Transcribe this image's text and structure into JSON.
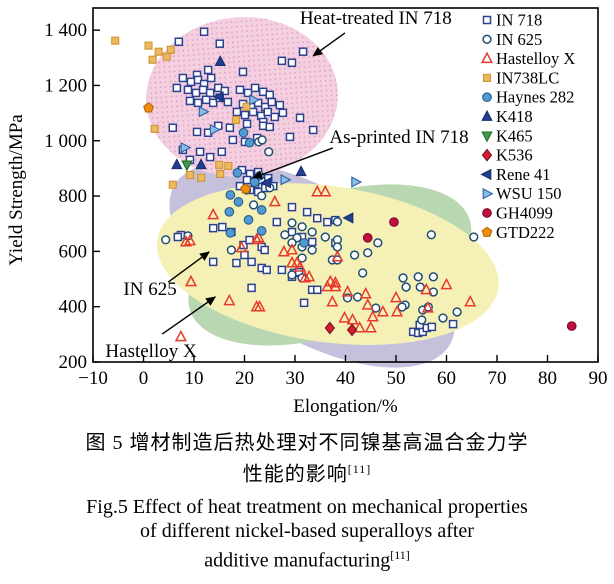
{
  "captions": {
    "cn1": "图 5  增材制造后热处理对不同镍基高温合金力学",
    "cn2": "性能的影响",
    "ref": "[11]",
    "en1": "Fig.5 Effect of heat treatment on mechanical properties",
    "en2": "of different nickel-based superalloys after",
    "en3": "additive manufacturing"
  },
  "chart_data": {
    "type": "scatter",
    "xlabel": "Elongation/%",
    "ylabel": "Yield Strength/MPa",
    "xlim": [
      -10,
      90
    ],
    "ylim": [
      200,
      1480
    ],
    "xticks": [
      -10,
      0,
      10,
      20,
      30,
      40,
      50,
      60,
      70,
      80,
      90
    ],
    "xtick_labels": [
      "−10",
      "0",
      "10",
      "20",
      "30",
      "40",
      "50",
      "60",
      "70",
      "80",
      "90"
    ],
    "yticks": [
      200,
      400,
      600,
      800,
      1000,
      1200,
      1400
    ],
    "ytick_labels": [
      "200",
      "400",
      "600",
      "800",
      "1 000",
      "1 200",
      "1 400"
    ],
    "grid": false,
    "legend_position": "top-right-inside",
    "regions": [
      {
        "name": "as-printed-region",
        "color": "#c5c1dc",
        "cx": 33.4,
        "cy": 551,
        "rx": 31.5,
        "ry": 271,
        "rot": 30,
        "pattern": "solid"
      },
      {
        "name": "hastelloy-x-region",
        "color": "#b9d8b1",
        "cx": 36.9,
        "cy": 551,
        "rx": 29.1,
        "ry": 253,
        "rot": -18,
        "pattern": "solid"
      },
      {
        "name": "in625-region",
        "color": "#f5f1b6",
        "cx": 36.5,
        "cy": 554,
        "rx": 34.1,
        "ry": 282,
        "rot": 8,
        "pattern": "solid"
      },
      {
        "name": "heat-treated-in718-region",
        "color": "#f4cfe0",
        "dot_color": "#dd9fc6",
        "cx": 19.5,
        "cy": 1158,
        "rx": 19.0,
        "ry": 289,
        "rot": -4,
        "pattern": "dots"
      }
    ],
    "annotations": [
      {
        "text": "Heat-treated IN 718",
        "tx": 46.0,
        "ty": 1444,
        "arrow": [
          39.9,
          1390,
          33.6,
          1307
        ]
      },
      {
        "text": "As-printed IN 718",
        "tx": 50.6,
        "ty": 1014,
        "arrow": [
          37.5,
          974,
          21.7,
          866
        ]
      },
      {
        "text": "IN 625",
        "tx": 1.3,
        "ty": 464,
        "arrow": [
          4.9,
          489,
          13.0,
          598
        ]
      },
      {
        "text": "Hastelloy X",
        "tx": 1.5,
        "ty": 240,
        "arrow": [
          3.7,
          301,
          14.2,
          435
        ]
      }
    ],
    "series": [
      {
        "name": "IN 718",
        "marker": "open-square",
        "color": "#2b418f",
        "points": [
          [
            12.0,
            1394
          ],
          [
            7.0,
            1358
          ],
          [
            15.1,
            1351
          ],
          [
            31.6,
            1322
          ],
          [
            27.4,
            1289
          ],
          [
            29.4,
            1282
          ],
          [
            19.7,
            1249
          ],
          [
            10.6,
            1238
          ],
          [
            12.8,
            1256
          ],
          [
            7.8,
            1227
          ],
          [
            9.4,
            1213
          ],
          [
            10.8,
            1220
          ],
          [
            12.0,
            1205
          ],
          [
            13.4,
            1227
          ],
          [
            8.8,
            1184
          ],
          [
            10.4,
            1173
          ],
          [
            11.8,
            1184
          ],
          [
            13.2,
            1173
          ],
          [
            14.8,
            1191
          ],
          [
            16.1,
            1180
          ],
          [
            9.2,
            1144
          ],
          [
            10.8,
            1137
          ],
          [
            12.4,
            1148
          ],
          [
            13.8,
            1137
          ],
          [
            15.1,
            1155
          ],
          [
            16.7,
            1140
          ],
          [
            6.6,
            1191
          ],
          [
            19.1,
            1184
          ],
          [
            20.7,
            1173
          ],
          [
            22.1,
            1191
          ],
          [
            23.7,
            1177
          ],
          [
            25.0,
            1166
          ],
          [
            19.7,
            1133
          ],
          [
            21.3,
            1122
          ],
          [
            22.7,
            1137
          ],
          [
            24.1,
            1122
          ],
          [
            25.4,
            1140
          ],
          [
            27.0,
            1129
          ],
          [
            18.5,
            1104
          ],
          [
            20.1,
            1093
          ],
          [
            21.7,
            1104
          ],
          [
            23.3,
            1090
          ],
          [
            24.6,
            1104
          ],
          [
            26.0,
            1086
          ],
          [
            27.6,
            1101
          ],
          [
            20.5,
            1061
          ],
          [
            23.7,
            1068
          ],
          [
            5.8,
            1047
          ],
          [
            10.6,
            1032
          ],
          [
            12.8,
            1029
          ],
          [
            17.7,
            1003
          ],
          [
            20.1,
            996
          ],
          [
            22.5,
            1010
          ],
          [
            7.8,
            967
          ],
          [
            11.2,
            960
          ],
          [
            15.5,
            960
          ],
          [
            9.2,
            931
          ],
          [
            13.2,
            941
          ],
          [
            23.7,
            1054
          ],
          [
            25.0,
            1050
          ],
          [
            29.0,
            1014
          ],
          [
            17.1,
            1047
          ],
          [
            14.8,
            1054
          ],
          [
            31.0,
            1083
          ],
          [
            33.6,
            1039
          ],
          [
            19.5,
            894
          ],
          [
            21.1,
            880
          ],
          [
            22.7,
            887
          ],
          [
            20.5,
            858
          ],
          [
            22.1,
            844
          ],
          [
            23.5,
            858
          ],
          [
            21.1,
            822
          ],
          [
            22.7,
            815
          ],
          [
            24.1,
            829
          ],
          [
            19.1,
            836
          ],
          [
            24.7,
            865
          ],
          [
            25.7,
            836
          ],
          [
            15.6,
            688
          ],
          [
            17.4,
            670
          ],
          [
            23.4,
            616
          ],
          [
            26.4,
            706
          ],
          [
            29.4,
            760
          ],
          [
            32.4,
            742
          ],
          [
            34.4,
            720
          ],
          [
            36.4,
            706
          ],
          [
            38.0,
            713
          ],
          [
            29.4,
            670
          ],
          [
            31.4,
            652
          ],
          [
            33.4,
            634
          ],
          [
            19.8,
            623
          ],
          [
            21.0,
            641
          ],
          [
            24.0,
            605
          ],
          [
            18.4,
            558
          ],
          [
            21.4,
            562
          ],
          [
            23.4,
            540
          ],
          [
            20.0,
            587
          ],
          [
            38.0,
            630
          ],
          [
            29.8,
            522
          ],
          [
            30.8,
            525
          ],
          [
            33.4,
            461
          ],
          [
            34.4,
            461
          ],
          [
            31.8,
            414
          ],
          [
            24.4,
            533
          ],
          [
            27.4,
            533
          ],
          [
            29.4,
            508
          ],
          [
            21.4,
            468
          ],
          [
            13.8,
            562
          ],
          [
            7.4,
            659
          ],
          [
            6.8,
            652
          ],
          [
            13.8,
            684
          ],
          [
            53.4,
            309
          ],
          [
            54.4,
            305
          ],
          [
            55.3,
            309
          ],
          [
            56.1,
            323
          ],
          [
            57.1,
            327
          ],
          [
            54.7,
            334
          ],
          [
            61.3,
            337
          ]
        ]
      },
      {
        "name": "IN 625",
        "marker": "open-circle",
        "color": "#1f4e73",
        "points": [
          [
            22.8,
            996
          ],
          [
            24.8,
            960
          ],
          [
            23.5,
            1003
          ],
          [
            4.4,
            642
          ],
          [
            8.8,
            656
          ],
          [
            17.4,
            605
          ],
          [
            20.4,
            822
          ],
          [
            23.4,
            801
          ],
          [
            25.0,
            830
          ],
          [
            21.8,
            768
          ],
          [
            28.0,
            660
          ],
          [
            30.4,
            649
          ],
          [
            29.4,
            703
          ],
          [
            31.4,
            689
          ],
          [
            33.4,
            670
          ],
          [
            36.0,
            652
          ],
          [
            38.4,
            707
          ],
          [
            29.4,
            631
          ],
          [
            31.4,
            616
          ],
          [
            33.4,
            605
          ],
          [
            38.4,
            642
          ],
          [
            37.4,
            569
          ],
          [
            29.4,
            515
          ],
          [
            31.4,
            504
          ],
          [
            46.4,
            631
          ],
          [
            31.4,
            576
          ],
          [
            38.4,
            569
          ],
          [
            43.4,
            522
          ],
          [
            51.4,
            504
          ],
          [
            54.4,
            508
          ],
          [
            52.0,
            471
          ],
          [
            40.4,
            432
          ],
          [
            42.4,
            435
          ],
          [
            46.0,
            395
          ],
          [
            51.8,
            406
          ],
          [
            55.3,
            388
          ],
          [
            56.4,
            399
          ],
          [
            57.0,
            660
          ],
          [
            57.4,
            508
          ],
          [
            62.1,
            381
          ],
          [
            59.3,
            359
          ],
          [
            55.1,
            352
          ],
          [
            57.4,
            453
          ],
          [
            54.8,
            471
          ],
          [
            51.2,
            399
          ],
          [
            38.4,
            616
          ],
          [
            41.8,
            587
          ],
          [
            44.4,
            595
          ],
          [
            65.4,
            652
          ]
        ]
      },
      {
        "name": "Hastelloy X",
        "marker": "open-triangle-up",
        "color": "#e8392b",
        "points": [
          [
            13.8,
            732
          ],
          [
            8.4,
            634
          ],
          [
            9.2,
            638
          ],
          [
            9.4,
            490
          ],
          [
            7.4,
            291
          ],
          [
            17.0,
            421
          ],
          [
            23.0,
            399
          ],
          [
            22.4,
            642
          ],
          [
            27.8,
            598
          ],
          [
            29.4,
            558
          ],
          [
            30.4,
            558
          ],
          [
            32.8,
            508
          ],
          [
            37.0,
            490
          ],
          [
            38.0,
            486
          ],
          [
            40.4,
            453
          ],
          [
            44.0,
            446
          ],
          [
            37.4,
            417
          ],
          [
            44.4,
            406
          ],
          [
            47.4,
            381
          ],
          [
            50.2,
            381
          ],
          [
            45.4,
            363
          ],
          [
            39.8,
            359
          ],
          [
            41.4,
            352
          ],
          [
            42.8,
            323
          ],
          [
            45.0,
            323
          ],
          [
            50.0,
            432
          ],
          [
            56.3,
            395
          ],
          [
            22.4,
            399
          ],
          [
            34.4,
            815
          ],
          [
            36.0,
            815
          ],
          [
            26.0,
            779
          ],
          [
            22.8,
            649
          ],
          [
            19.4,
            613
          ],
          [
            29.4,
            605
          ],
          [
            31.0,
            543
          ],
          [
            32.0,
            504
          ],
          [
            36.4,
            472
          ],
          [
            38.0,
            472
          ],
          [
            38.4,
            580
          ],
          [
            64.7,
            417
          ],
          [
            60.0,
            479
          ],
          [
            56.0,
            461
          ]
        ]
      },
      {
        "name": "IN738LC",
        "marker": "square",
        "color": "#ecb960",
        "border": "#cf9434",
        "points": [
          [
            -5.6,
            1362
          ],
          [
            1.0,
            1344
          ],
          [
            3.0,
            1322
          ],
          [
            1.8,
            1293
          ],
          [
            4.6,
            1304
          ],
          [
            5.4,
            1329
          ],
          [
            2.2,
            1043
          ],
          [
            18.3,
            1075
          ],
          [
            20.4,
            1123
          ],
          [
            5.8,
            841
          ],
          [
            11.4,
            866
          ],
          [
            15.0,
            913
          ],
          [
            16.8,
            909
          ],
          [
            9.2,
            876
          ],
          [
            15.2,
            880
          ]
        ]
      },
      {
        "name": "Haynes 282",
        "marker": "circle",
        "color": "#4f9ad2",
        "border": "#2b5a8c",
        "points": [
          [
            19.8,
            1029
          ],
          [
            21.0,
            993
          ],
          [
            18.6,
            884
          ],
          [
            23.0,
            873
          ],
          [
            22.0,
            851
          ],
          [
            17.2,
            804
          ],
          [
            18.8,
            779
          ],
          [
            17.0,
            743
          ],
          [
            20.8,
            714
          ],
          [
            23.4,
            750
          ],
          [
            17.2,
            667
          ],
          [
            23.4,
            674
          ],
          [
            31.8,
            631
          ]
        ]
      },
      {
        "name": "K418",
        "marker": "triangle-up",
        "color": "#203f90",
        "border": "#162f6e",
        "points": [
          [
            6.6,
            913
          ],
          [
            11.4,
            913
          ],
          [
            31.2,
            888
          ],
          [
            15.2,
            1286
          ]
        ]
      },
      {
        "name": "K465",
        "marker": "triangle-down",
        "color": "#3f9a49",
        "border": "#1f6b2a",
        "points": [
          [
            8.6,
            913
          ]
        ]
      },
      {
        "name": "K536",
        "marker": "diamond",
        "color": "#d01f2f",
        "border": "#7d101c",
        "points": [
          [
            36.9,
            323
          ],
          [
            41.3,
            316
          ]
        ]
      },
      {
        "name": "Rene 41",
        "marker": "triangle-left",
        "color": "#203f90",
        "border": "#162f6e",
        "points": [
          [
            15.0,
            1159
          ],
          [
            24.4,
            848
          ],
          [
            40.7,
            721
          ]
        ]
      },
      {
        "name": "WSU 150",
        "marker": "triangle-right",
        "color": "#86bde9",
        "border": "#2f5fa0",
        "points": [
          [
            11.8,
            1105
          ],
          [
            14.0,
            1040
          ],
          [
            8.2,
            975
          ],
          [
            21.8,
            1148
          ],
          [
            28.0,
            859
          ],
          [
            42.0,
            851
          ]
        ]
      },
      {
        "name": "GH4099",
        "marker": "circle",
        "color": "#c00e3e",
        "border": "#7d0926",
        "points": [
          [
            49.6,
            706
          ],
          [
            44.4,
            649
          ],
          [
            84.8,
            330
          ]
        ]
      },
      {
        "name": "GTD222",
        "marker": "pentagon",
        "color": "#ee8c10",
        "border": "#b96705",
        "points": [
          [
            1.0,
            1119
          ],
          [
            20.2,
            826
          ]
        ]
      }
    ]
  }
}
